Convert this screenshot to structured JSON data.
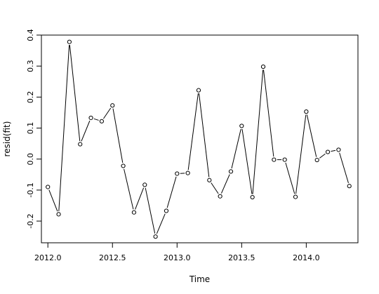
{
  "chart_data": {
    "type": "line",
    "xlabel": "Time",
    "ylabel": "resid(fit)",
    "xlim": [
      2011.95,
      2014.4
    ],
    "ylim": [
      -0.27,
      0.4
    ],
    "x_ticks": [
      2012.0,
      2012.5,
      2013.0,
      2013.5,
      2014.0
    ],
    "x_tick_labels": [
      "2012.0",
      "2012.5",
      "2013.0",
      "2013.5",
      "2014.0"
    ],
    "y_ticks": [
      -0.2,
      -0.1,
      0.0,
      0.1,
      0.2,
      0.3,
      0.4
    ],
    "y_tick_labels": [
      "-0.2",
      "-0.1",
      "0.0",
      "0.1",
      "0.2",
      "0.3",
      "0.4"
    ],
    "grid": false,
    "style": "line-with-open-circles",
    "series": [
      {
        "x": [
          2012.0,
          2012.0833,
          2012.1667,
          2012.25,
          2012.3333,
          2012.4167,
          2012.5,
          2012.5833,
          2012.6667,
          2012.75,
          2012.8333,
          2012.9167,
          2013.0,
          2013.0833,
          2013.1667,
          2013.25,
          2013.3333,
          2013.4167,
          2013.5,
          2013.5833,
          2013.6667,
          2013.75,
          2013.8333,
          2013.9167,
          2014.0,
          2014.0833,
          2014.1667,
          2014.25,
          2014.3333
        ],
        "values": [
          -0.09,
          -0.178,
          0.378,
          0.048,
          0.133,
          0.122,
          0.173,
          -0.022,
          -0.172,
          -0.083,
          -0.25,
          -0.167,
          -0.047,
          -0.045,
          0.222,
          -0.068,
          -0.12,
          -0.04,
          0.107,
          -0.123,
          0.298,
          -0.002,
          -0.002,
          -0.122,
          0.153,
          -0.003,
          0.023,
          0.03,
          -0.087
        ]
      }
    ]
  }
}
